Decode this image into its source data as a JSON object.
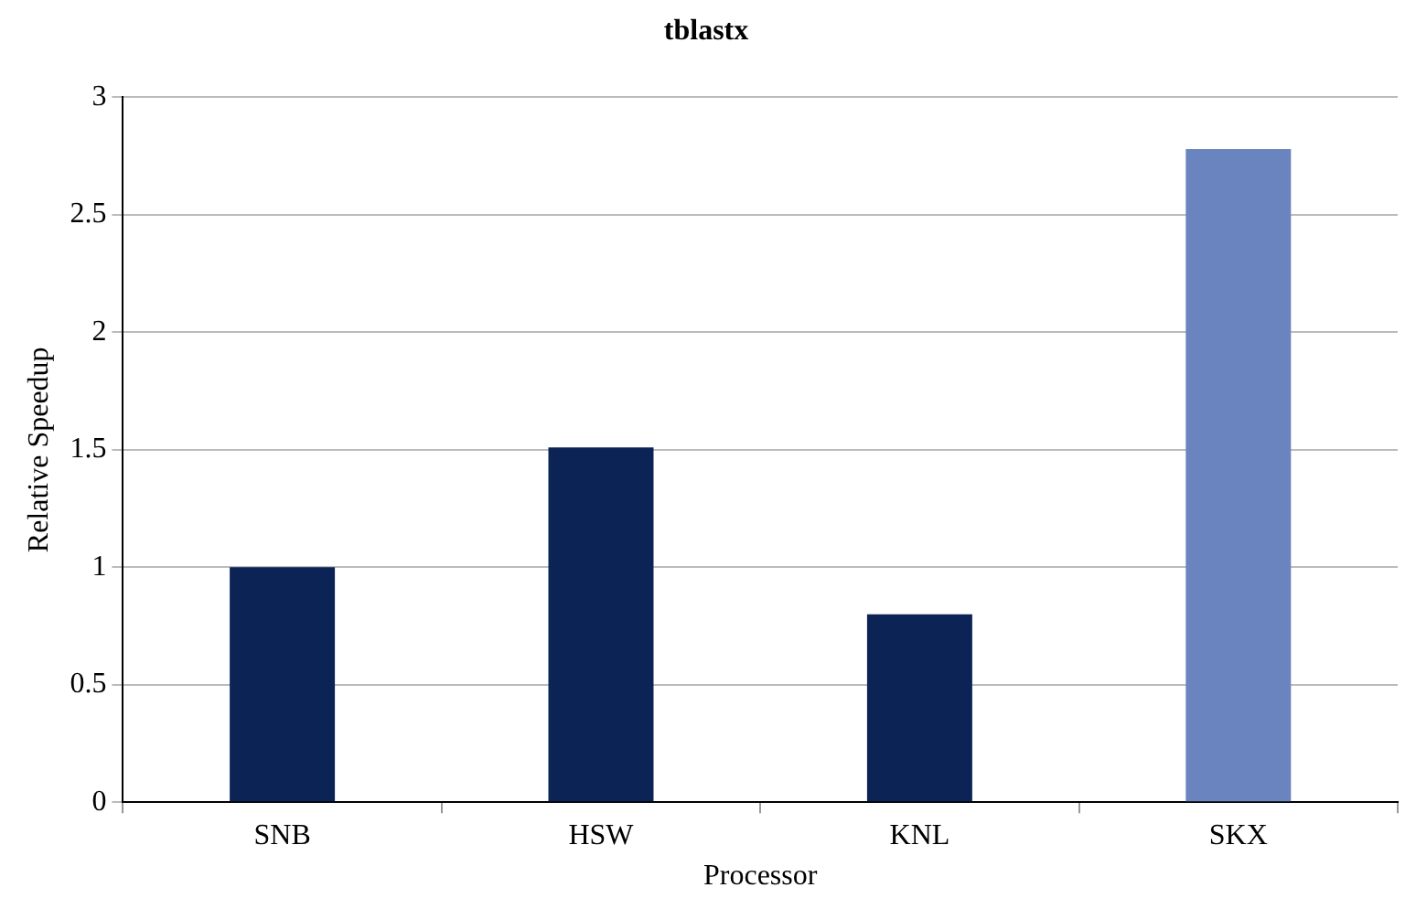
{
  "chart_data": {
    "type": "bar",
    "title": "tblastx",
    "xlabel": "Processor",
    "ylabel": "Relative Speedup",
    "categories": [
      "SNB",
      "HSW",
      "KNL",
      "SKX"
    ],
    "values": [
      1.0,
      1.51,
      0.8,
      2.78
    ],
    "colors": [
      "#0c2355",
      "#0c2355",
      "#0c2355",
      "#6a84bf"
    ],
    "ylim": [
      0,
      3
    ],
    "yticks": [
      0,
      {
        "value": 0.5,
        "label": "0.5"
      },
      1,
      {
        "value": 1.5,
        "label": "1.5"
      },
      2,
      {
        "value": 2.5,
        "label": "2.5"
      },
      3
    ],
    "grid": "y"
  }
}
